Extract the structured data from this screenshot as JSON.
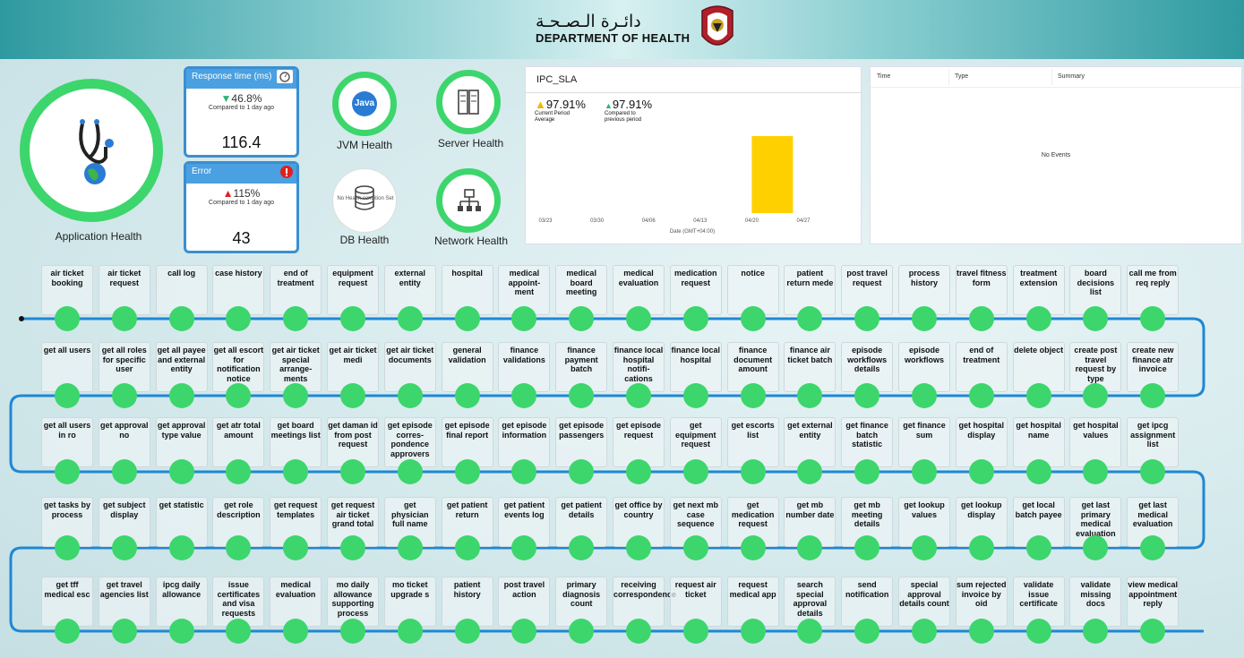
{
  "header": {
    "arabic_title": "دائـرة الـصـحـة",
    "english_title": "DEPARTMENT OF HEALTH"
  },
  "app_health": {
    "label": "Application Health"
  },
  "response_time": {
    "title": "Response time (ms)",
    "change": "46.8%",
    "compared": "Compared to 1 day ago",
    "value": "116.4"
  },
  "error": {
    "title": "Error",
    "change": "115%",
    "compared": "Compared to 1 day ago",
    "value": "43"
  },
  "jvm": {
    "label": "JVM Health",
    "badge": "Java"
  },
  "server": {
    "label": "Server Health"
  },
  "db": {
    "label": "DB Health",
    "no_data": "No Health condition Set"
  },
  "network": {
    "label": "Network Health"
  },
  "sla": {
    "title": "IPC_SLA",
    "current_value": "97.91%",
    "current_label": "Current Period Average",
    "previous_value": "97.91%",
    "previous_label": "Compared to previous period",
    "xlabel": "Date (GMT+04:00)"
  },
  "chart_data": {
    "type": "bar",
    "categories": [
      "03/23",
      "03/30",
      "04/06",
      "04/13",
      "04/20",
      "04/27"
    ],
    "bar_value": 1,
    "bar_index": 4.3,
    "xlabel": "Date (GMT+04:00)"
  },
  "events": {
    "columns": [
      "Time",
      "Type",
      "Summary"
    ],
    "empty": "No Events"
  },
  "colors": {
    "ok": "#3cd66c",
    "line": "#1e88d4",
    "bar": "#ffd000"
  },
  "services": [
    [
      "air ticket booking",
      "air ticket request",
      "call log",
      "case history",
      "end of treatment",
      "equipment request",
      "external entity",
      "hospital",
      "medical appoint-ment",
      "medical board meeting",
      "medical evaluation",
      "medication request",
      "notice",
      "patient return mede",
      "post travel request",
      "process history",
      "travel fitness form",
      "treatment extension",
      "board decisions list",
      "call me from req reply"
    ],
    [
      "get all users",
      "get all roles for specific user",
      "get all payee and external entity",
      "get all escort for notification notice",
      "get air ticket special arrange-ments",
      "get air ticket medi",
      "get air ticket documents",
      "general validation",
      "finance validations",
      "finance payment batch",
      "finance local hospital notifi-cations",
      "finance local hospital",
      "finance document amount",
      "finance air ticket batch",
      "episode workflows details",
      "episode workflows",
      "end of treatment",
      "delete object",
      "create post travel request by type",
      "create new finance atr invoice"
    ],
    [
      "get all users in ro",
      "get approval no",
      "get approval type value",
      "get atr total amount",
      "get board meetings list",
      "get daman id from post request",
      "get episode corres-pondence approvers",
      "get episode final report",
      "get episode information",
      "get episode passengers",
      "get episode request",
      "get equipment request",
      "get escorts list",
      "get external entity",
      "get finance batch statistic",
      "get finance sum",
      "get hospital display",
      "get hospital name",
      "get hospital values",
      "get ipcg assignment list"
    ],
    [
      "get tasks by process",
      "get subject display",
      "get statistic",
      "get role description",
      "get request templates",
      "get request air ticket grand total",
      "get physician full name",
      "get patient return",
      "get patient events log",
      "get patient details",
      "get office by country",
      "get next mb case sequence",
      "get medication request",
      "get mb number date",
      "get mb meeting details",
      "get lookup values",
      "get lookup display",
      "get local batch payee",
      "get last primary medical evaluation",
      "get last medical evaluation"
    ],
    [
      "get tff medical esc",
      "get travel agencies list",
      "ipcg daily allowance",
      "issue certificates and visa requests",
      "medical evaluation",
      "mo daily allowance supporting process",
      "mo ticket upgrade s",
      "patient history",
      "post travel action",
      "primary diagnosis count",
      "receiving correspondence",
      "request air ticket",
      "request medical app",
      "search special approval details",
      "send notification",
      "special approval details count",
      "sum rejected invoice by oid",
      "validate issue certificate",
      "validate missing docs",
      "view medical appointment reply"
    ]
  ]
}
